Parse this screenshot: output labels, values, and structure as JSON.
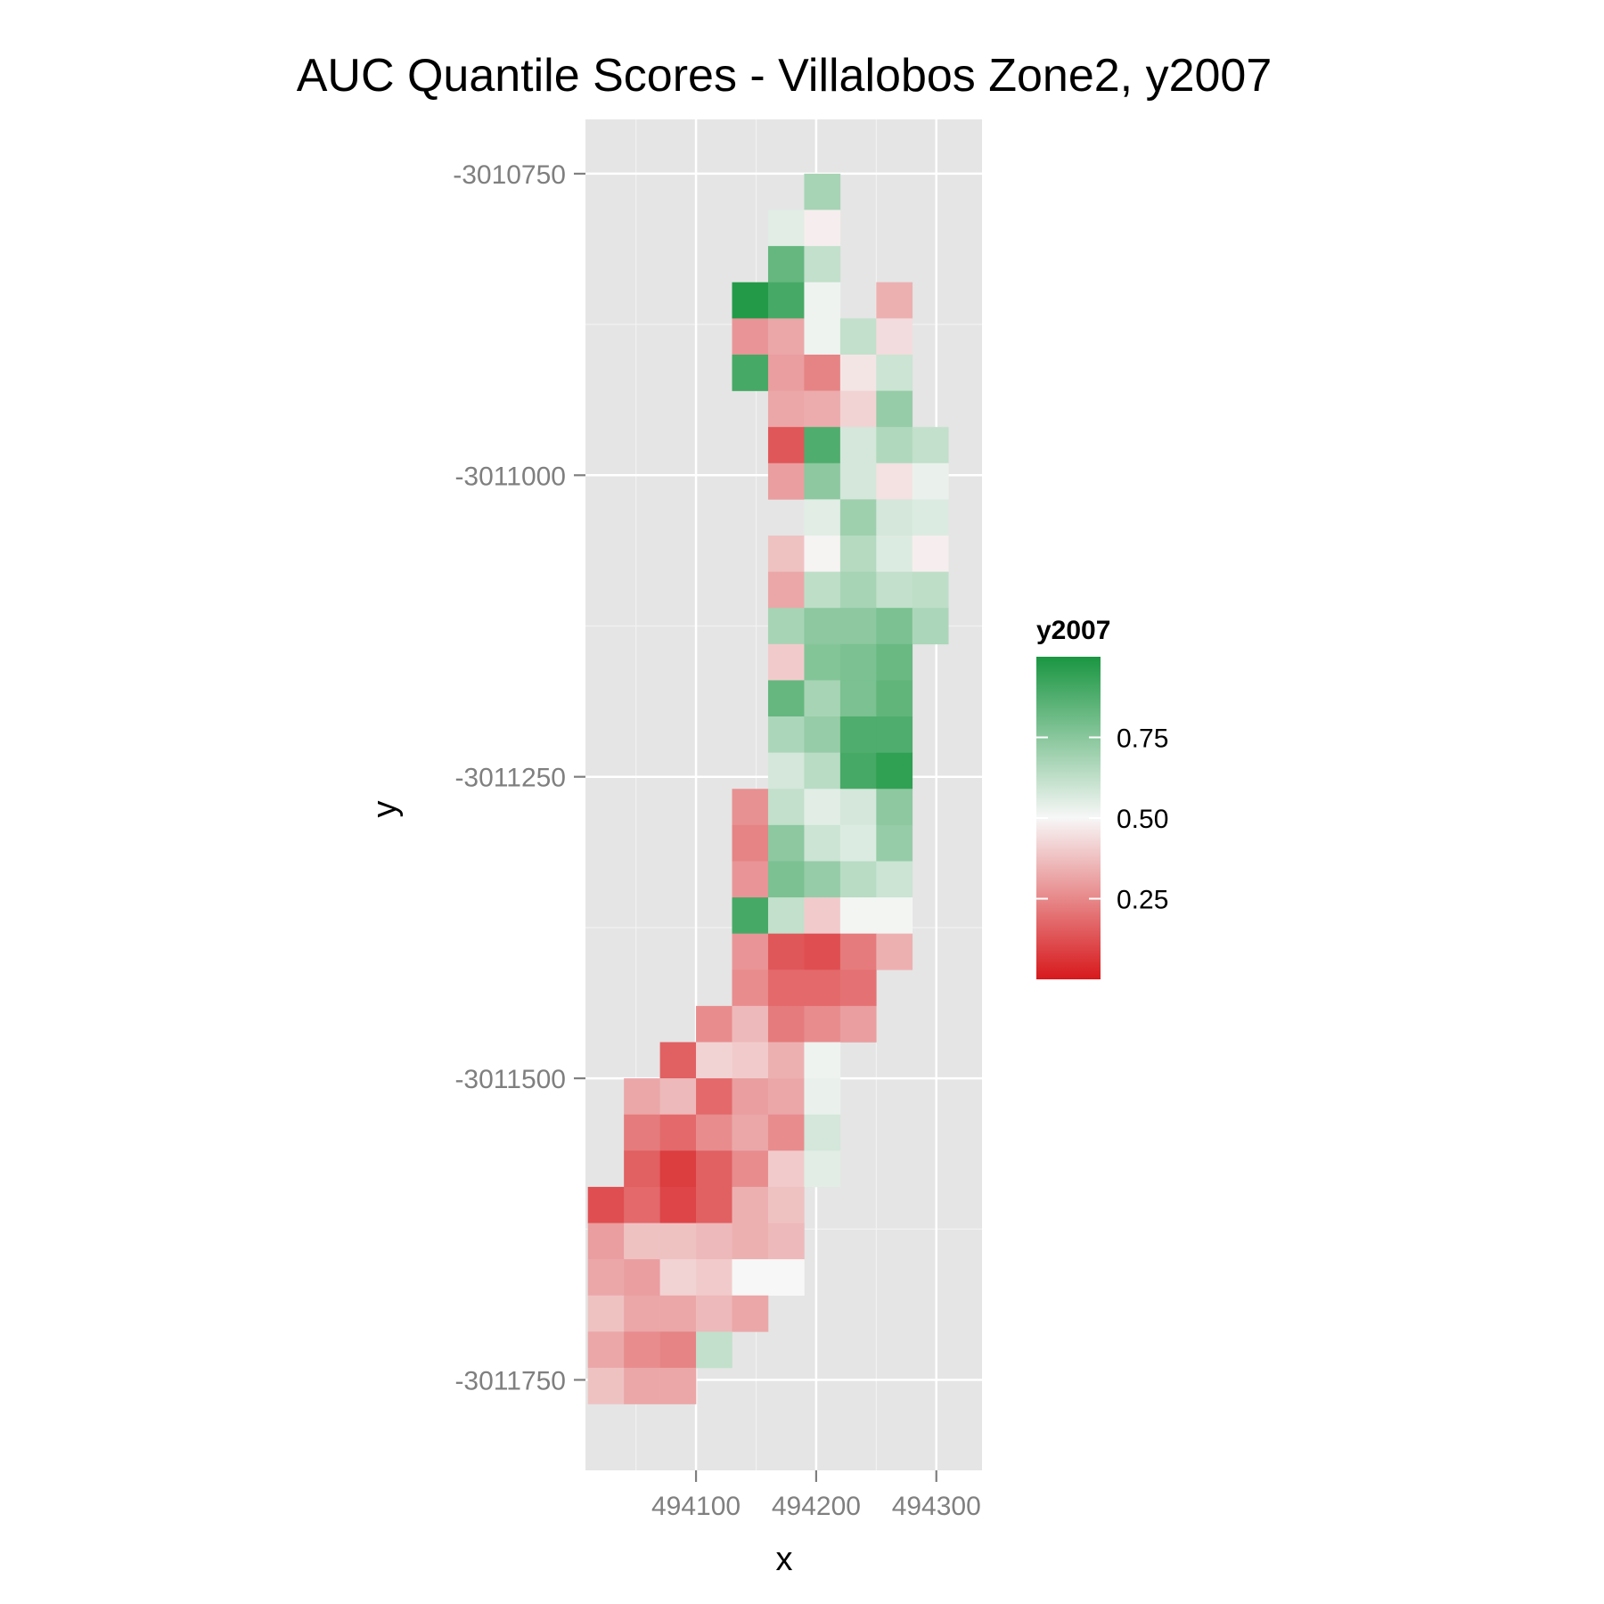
{
  "chart_data": {
    "type": "heatmap",
    "title": "AUC Quantile Scores - Villalobos Zone2, y2007",
    "xlabel": "x",
    "ylabel": "y",
    "x_ticks": [
      494100,
      494200,
      494300
    ],
    "x_tick_labels": [
      "494100",
      "494200",
      "494300"
    ],
    "y_ticks": [
      -3010750,
      -3011000,
      -3011250,
      -3011500,
      -3011750
    ],
    "y_tick_labels": [
      "-3010750",
      "-3011000",
      "-3011250",
      "-3011500",
      "-3011750"
    ],
    "xlim": [
      494008,
      494338
    ],
    "ylim": [
      -3011825,
      -3010705
    ],
    "cell_size": 30,
    "grid": true,
    "panel_background": "#e5e5e5",
    "grid_color": "#ffffff",
    "legend": {
      "title": "y2007",
      "position": "right",
      "range": [
        0,
        1
      ],
      "breaks": [
        0.25,
        0.5,
        0.75
      ],
      "break_labels": [
        "0.25",
        "0.50",
        "0.75"
      ],
      "colors": {
        "low": "#d7191c",
        "mid": "#f7f7f7",
        "high": "#1a9641"
      }
    },
    "x_origin": 494025,
    "y_origin": -3010765,
    "cells": [
      [
        0,
        6,
        0.68
      ],
      [
        1,
        5,
        0.55
      ],
      [
        1,
        6,
        0.48
      ],
      [
        2,
        5,
        0.83
      ],
      [
        2,
        6,
        0.62
      ],
      [
        3,
        4,
        0.98
      ],
      [
        3,
        5,
        0.9
      ],
      [
        3,
        6,
        0.52
      ],
      [
        3,
        8,
        0.34
      ],
      [
        4,
        4,
        0.28
      ],
      [
        4,
        5,
        0.32
      ],
      [
        4,
        6,
        0.52
      ],
      [
        4,
        7,
        0.62
      ],
      [
        4,
        8,
        0.44
      ],
      [
        5,
        4,
        0.9
      ],
      [
        5,
        5,
        0.3
      ],
      [
        5,
        6,
        0.24
      ],
      [
        5,
        7,
        0.46
      ],
      [
        5,
        8,
        0.6
      ],
      [
        6,
        5,
        0.32
      ],
      [
        6,
        6,
        0.33
      ],
      [
        6,
        7,
        0.42
      ],
      [
        6,
        8,
        0.72
      ],
      [
        7,
        5,
        0.14
      ],
      [
        7,
        6,
        0.88
      ],
      [
        7,
        7,
        0.58
      ],
      [
        7,
        8,
        0.66
      ],
      [
        7,
        9,
        0.62
      ],
      [
        8,
        5,
        0.3
      ],
      [
        8,
        6,
        0.74
      ],
      [
        8,
        7,
        0.58
      ],
      [
        8,
        8,
        0.45
      ],
      [
        8,
        9,
        0.53
      ],
      [
        9,
        6,
        0.55
      ],
      [
        9,
        7,
        0.7
      ],
      [
        9,
        8,
        0.58
      ],
      [
        9,
        9,
        0.56
      ],
      [
        10,
        5,
        0.38
      ],
      [
        10,
        6,
        0.49
      ],
      [
        10,
        7,
        0.65
      ],
      [
        10,
        8,
        0.56
      ],
      [
        10,
        9,
        0.48
      ],
      [
        11,
        5,
        0.32
      ],
      [
        11,
        6,
        0.63
      ],
      [
        11,
        7,
        0.68
      ],
      [
        11,
        8,
        0.62
      ],
      [
        11,
        9,
        0.63
      ],
      [
        12,
        5,
        0.68
      ],
      [
        12,
        6,
        0.74
      ],
      [
        12,
        7,
        0.74
      ],
      [
        12,
        8,
        0.78
      ],
      [
        12,
        9,
        0.67
      ],
      [
        13,
        5,
        0.4
      ],
      [
        13,
        6,
        0.76
      ],
      [
        13,
        7,
        0.78
      ],
      [
        13,
        8,
        0.82
      ],
      [
        14,
        5,
        0.83
      ],
      [
        14,
        6,
        0.68
      ],
      [
        14,
        7,
        0.78
      ],
      [
        14,
        8,
        0.84
      ],
      [
        15,
        5,
        0.67
      ],
      [
        15,
        6,
        0.72
      ],
      [
        15,
        7,
        0.88
      ],
      [
        15,
        8,
        0.88
      ],
      [
        16,
        5,
        0.58
      ],
      [
        16,
        6,
        0.64
      ],
      [
        16,
        7,
        0.9
      ],
      [
        16,
        8,
        0.95
      ],
      [
        17,
        4,
        0.27
      ],
      [
        17,
        5,
        0.62
      ],
      [
        17,
        6,
        0.55
      ],
      [
        17,
        7,
        0.58
      ],
      [
        17,
        8,
        0.74
      ],
      [
        18,
        4,
        0.24
      ],
      [
        18,
        5,
        0.74
      ],
      [
        18,
        6,
        0.6
      ],
      [
        18,
        7,
        0.56
      ],
      [
        18,
        8,
        0.72
      ],
      [
        19,
        4,
        0.28
      ],
      [
        19,
        5,
        0.78
      ],
      [
        19,
        6,
        0.72
      ],
      [
        19,
        7,
        0.64
      ],
      [
        19,
        8,
        0.6
      ],
      [
        20,
        4,
        0.9
      ],
      [
        20,
        5,
        0.62
      ],
      [
        20,
        6,
        0.4
      ],
      [
        20,
        7,
        0.51
      ],
      [
        20,
        8,
        0.51
      ],
      [
        21,
        4,
        0.28
      ],
      [
        21,
        5,
        0.14
      ],
      [
        21,
        6,
        0.12
      ],
      [
        21,
        7,
        0.22
      ],
      [
        21,
        8,
        0.34
      ],
      [
        22,
        4,
        0.26
      ],
      [
        22,
        5,
        0.18
      ],
      [
        22,
        6,
        0.18
      ],
      [
        22,
        7,
        0.2
      ],
      [
        23,
        3,
        0.26
      ],
      [
        23,
        4,
        0.36
      ],
      [
        23,
        5,
        0.22
      ],
      [
        23,
        6,
        0.26
      ],
      [
        23,
        7,
        0.3
      ],
      [
        24,
        2,
        0.16
      ],
      [
        24,
        3,
        0.42
      ],
      [
        24,
        4,
        0.4
      ],
      [
        24,
        5,
        0.34
      ],
      [
        24,
        6,
        0.52
      ],
      [
        25,
        1,
        0.32
      ],
      [
        25,
        2,
        0.36
      ],
      [
        25,
        3,
        0.18
      ],
      [
        25,
        4,
        0.3
      ],
      [
        25,
        5,
        0.32
      ],
      [
        25,
        6,
        0.53
      ],
      [
        26,
        1,
        0.22
      ],
      [
        26,
        2,
        0.18
      ],
      [
        26,
        3,
        0.26
      ],
      [
        26,
        4,
        0.32
      ],
      [
        26,
        5,
        0.26
      ],
      [
        26,
        6,
        0.58
      ],
      [
        27,
        1,
        0.16
      ],
      [
        27,
        2,
        0.08
      ],
      [
        27,
        3,
        0.16
      ],
      [
        27,
        4,
        0.26
      ],
      [
        27,
        5,
        0.4
      ],
      [
        27,
        6,
        0.55
      ],
      [
        28,
        0,
        0.12
      ],
      [
        28,
        1,
        0.18
      ],
      [
        28,
        2,
        0.1
      ],
      [
        28,
        3,
        0.16
      ],
      [
        28,
        4,
        0.34
      ],
      [
        28,
        5,
        0.38
      ],
      [
        29,
        0,
        0.3
      ],
      [
        29,
        1,
        0.38
      ],
      [
        29,
        2,
        0.38
      ],
      [
        29,
        3,
        0.36
      ],
      [
        29,
        4,
        0.34
      ],
      [
        29,
        5,
        0.36
      ],
      [
        30,
        0,
        0.32
      ],
      [
        30,
        1,
        0.3
      ],
      [
        30,
        2,
        0.42
      ],
      [
        30,
        3,
        0.4
      ],
      [
        30,
        4,
        0.5
      ],
      [
        30,
        5,
        0.5
      ],
      [
        31,
        0,
        0.38
      ],
      [
        31,
        1,
        0.32
      ],
      [
        31,
        2,
        0.32
      ],
      [
        31,
        3,
        0.36
      ],
      [
        31,
        4,
        0.32
      ],
      [
        32,
        0,
        0.32
      ],
      [
        32,
        1,
        0.26
      ],
      [
        32,
        2,
        0.24
      ],
      [
        32,
        3,
        0.62
      ],
      [
        33,
        0,
        0.38
      ],
      [
        33,
        1,
        0.32
      ],
      [
        33,
        2,
        0.32
      ]
    ]
  }
}
